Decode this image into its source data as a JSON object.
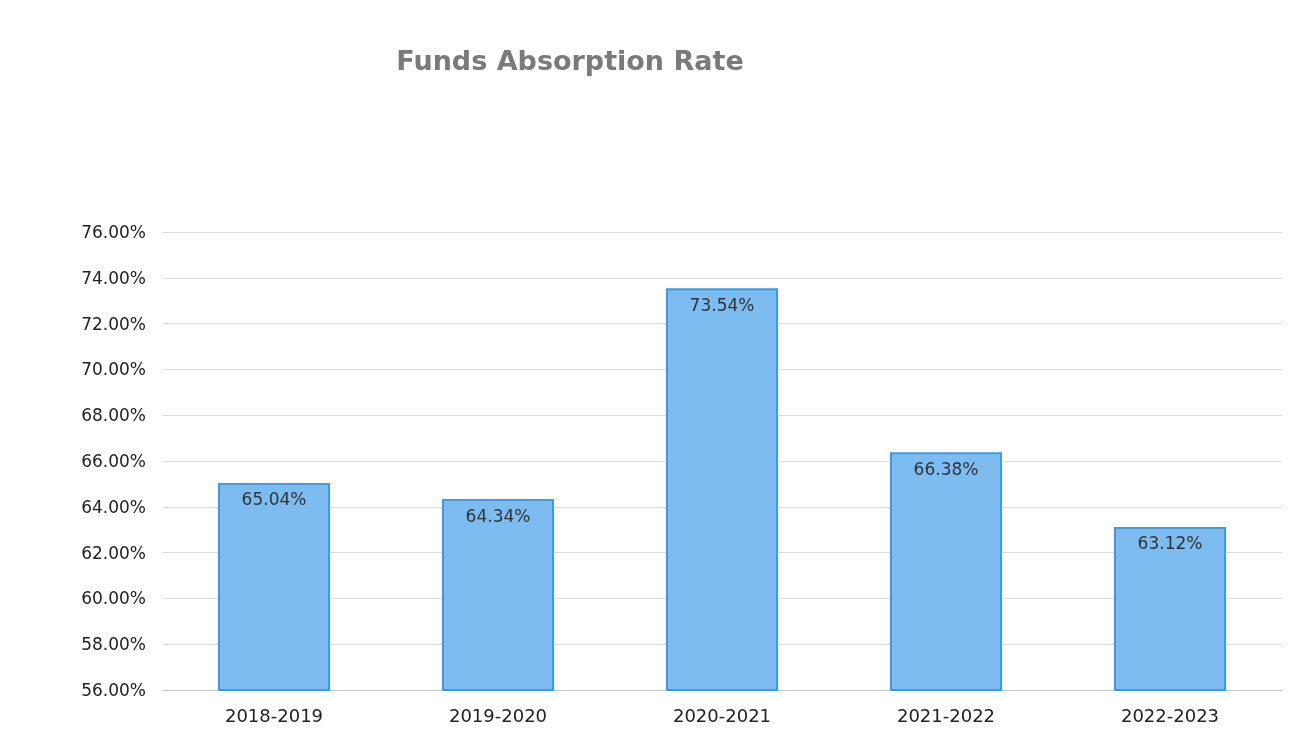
{
  "chart_data": {
    "type": "bar",
    "title": "Funds Absorption Rate",
    "categories": [
      "2018-2019",
      "2019-2020",
      "2020-2021",
      "2021-2022",
      "2022-2023"
    ],
    "values": [
      65.04,
      64.34,
      73.54,
      66.38,
      63.12
    ],
    "value_labels": [
      "65.04%",
      "64.34%",
      "73.54%",
      "66.38%",
      "63.12%"
    ],
    "color": "#7dbcf0",
    "ylim": [
      56,
      76
    ],
    "yticks": [
      {
        "value": 56,
        "label": "56.00%"
      },
      {
        "value": 58,
        "label": "58.00%"
      },
      {
        "value": 60,
        "label": "60.00%"
      },
      {
        "value": 62,
        "label": "62.00%"
      },
      {
        "value": 64,
        "label": "64.00%"
      },
      {
        "value": 66,
        "label": "66.00%"
      },
      {
        "value": 68,
        "label": "68.00%"
      },
      {
        "value": 70,
        "label": "70.00%"
      },
      {
        "value": 72,
        "label": "72.00%"
      },
      {
        "value": 74,
        "label": "74.00%"
      },
      {
        "value": 76,
        "label": "76.00%"
      }
    ],
    "grid": "y"
  }
}
